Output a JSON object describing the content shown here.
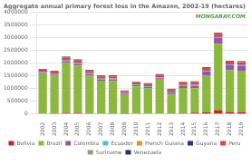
{
  "chart_data": {
    "type": "bar",
    "stacked": true,
    "title": "Aggregate annual primary forest loss in the Amazon, 2002-19 (hectares)",
    "annotations": [
      "MONGABAY.COM"
    ],
    "categories": [
      "2002",
      "2003",
      "2004",
      "2005",
      "2006",
      "2007",
      "2008",
      "2009",
      "2010",
      "2011",
      "2012",
      "2013",
      "2014",
      "2015",
      "2016",
      "2017",
      "2018",
      "2019"
    ],
    "series": [
      {
        "name": "Bolivia",
        "color": "#cc2222",
        "values": [
          20000,
          25000,
          40000,
          40000,
          30000,
          20000,
          25000,
          10000,
          15000,
          20000,
          20000,
          25000,
          30000,
          50000,
          60000,
          150000,
          80000,
          80000
        ]
      },
      {
        "name": "Brazil",
        "color": "#8db840",
        "values": [
          1550000,
          1480000,
          1980000,
          1870000,
          1480000,
          1290000,
          1280000,
          740000,
          1070000,
          990000,
          1340000,
          740000,
          1000000,
          970000,
          1450000,
          2620000,
          1650000,
          1630000
        ]
      },
      {
        "name": "Colombia",
        "color": "#9955aa",
        "values": [
          50000,
          45000,
          55000,
          65000,
          60000,
          55000,
          60000,
          50000,
          50000,
          55000,
          55000,
          60000,
          80000,
          100000,
          170000,
          220000,
          190000,
          190000
        ]
      },
      {
        "name": "Ecuador",
        "color": "#55bbdd",
        "values": [
          30000,
          28000,
          30000,
          30000,
          28000,
          25000,
          28000,
          22000,
          24000,
          22000,
          24000,
          22000,
          24000,
          24000,
          25000,
          30000,
          25000,
          25000
        ]
      },
      {
        "name": "French Guiana",
        "color": "#dd9922",
        "values": [
          5000,
          5000,
          5000,
          5000,
          5000,
          5000,
          5000,
          5000,
          5000,
          5000,
          5000,
          5000,
          5000,
          5000,
          5000,
          5000,
          5000,
          5000
        ]
      },
      {
        "name": "Guyana",
        "color": "#223388",
        "values": [
          8000,
          8000,
          8000,
          8000,
          8000,
          8000,
          8000,
          8000,
          8000,
          8000,
          8000,
          8000,
          8000,
          8000,
          8000,
          8000,
          8000,
          8000
        ]
      },
      {
        "name": "Peru",
        "color": "#dd4444",
        "values": [
          80000,
          80000,
          100000,
          90000,
          85000,
          80000,
          80000,
          70000,
          80000,
          85000,
          90000,
          90000,
          95000,
          100000,
          100000,
          130000,
          110000,
          110000
        ]
      },
      {
        "name": "Suriname",
        "color": "#999988",
        "values": [
          5000,
          5000,
          5000,
          5000,
          5000,
          5000,
          5000,
          5000,
          5000,
          5000,
          5000,
          5000,
          5000,
          5000,
          5000,
          5000,
          5000,
          5000
        ]
      },
      {
        "name": "Venezuela",
        "color": "#2a2f55",
        "values": [
          30000,
          30000,
          35000,
          35000,
          30000,
          30000,
          30000,
          20000,
          20000,
          25000,
          25000,
          25000,
          25000,
          25000,
          25000,
          30000,
          25000,
          25000
        ]
      }
    ],
    "ylim": [
      0,
      4000000
    ],
    "yticks": [
      0,
      500000,
      1000000,
      1500000,
      2000000,
      2500000,
      3000000,
      3500000,
      4000000
    ],
    "grid": true,
    "legend": "bottom"
  }
}
